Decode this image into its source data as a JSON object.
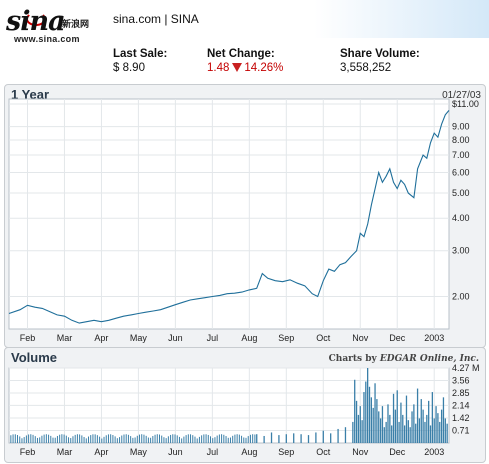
{
  "header": {
    "logo_text": "sina",
    "logo_cn": "新浪网",
    "logo_url": "www.sina.com",
    "company": "sina.com | SINA",
    "last_sale_label": "Last Sale:",
    "last_sale_value": "$ 8.90",
    "net_change_label": "Net Change:",
    "net_change_value": "1.48",
    "net_change_pct": "14.26%",
    "share_volume_label": "Share Volume:",
    "share_volume_value": "3,558,252"
  },
  "price_panel": {
    "title": "1 Year",
    "date": "01/27/03"
  },
  "volume_panel": {
    "title": "Volume",
    "credit_prefix": "Charts by ",
    "credit_brand": "EDGAR Online, Inc."
  },
  "colors": {
    "line": "#1f6f9a",
    "bar": "#3a7fa8",
    "down": "#c40000"
  },
  "chart_data": [
    {
      "type": "line",
      "title": "1 Year",
      "xlabel": "",
      "ylabel": "",
      "y_scale": "log",
      "ylim": [
        1.5,
        11.5
      ],
      "y_ticks": [
        2.0,
        3.0,
        4.0,
        5.0,
        6.0,
        7.0,
        8.0,
        9.0,
        11.0
      ],
      "y_tick_labels": [
        "2.00",
        "3.00",
        "4.00",
        "5.00",
        "6.00",
        "7.00",
        "8.00",
        "9.00",
        "$11.00"
      ],
      "x_ticks": [
        "Feb",
        "Mar",
        "Apr",
        "May",
        "Jun",
        "Jul",
        "Aug",
        "Sep",
        "Oct",
        "Nov",
        "Dec",
        "2003"
      ],
      "x_tick_pos": [
        1,
        2,
        3,
        4,
        5,
        6,
        7,
        8,
        9,
        10,
        11,
        12
      ],
      "x_range": [
        0.5,
        12.4
      ],
      "grid": true,
      "x": [
        0.5,
        0.8,
        1.0,
        1.2,
        1.4,
        1.6,
        1.8,
        2.0,
        2.2,
        2.4,
        2.6,
        2.8,
        3.0,
        3.2,
        3.4,
        3.6,
        3.8,
        4.0,
        4.2,
        4.4,
        4.6,
        4.8,
        5.0,
        5.2,
        5.4,
        5.6,
        5.8,
        6.0,
        6.2,
        6.4,
        6.6,
        6.8,
        7.0,
        7.2,
        7.35,
        7.5,
        7.7,
        7.9,
        8.1,
        8.3,
        8.5,
        8.7,
        8.85,
        9.0,
        9.15,
        9.3,
        9.45,
        9.6,
        9.75,
        9.9,
        10.0,
        10.1,
        10.2,
        10.3,
        10.4,
        10.5,
        10.6,
        10.7,
        10.8,
        10.9,
        11.0,
        11.1,
        11.2,
        11.3,
        11.45,
        11.55,
        11.7,
        11.8,
        11.9,
        12.0,
        12.1,
        12.2,
        12.3,
        12.4
      ],
      "values": [
        1.72,
        1.78,
        1.85,
        1.82,
        1.8,
        1.75,
        1.7,
        1.68,
        1.62,
        1.58,
        1.6,
        1.62,
        1.6,
        1.62,
        1.65,
        1.68,
        1.7,
        1.72,
        1.74,
        1.76,
        1.78,
        1.82,
        1.86,
        1.9,
        1.94,
        1.96,
        1.98,
        2.0,
        2.02,
        2.05,
        2.06,
        2.08,
        2.12,
        2.15,
        2.45,
        2.35,
        2.3,
        2.28,
        2.32,
        2.25,
        2.2,
        2.05,
        2.0,
        2.3,
        2.55,
        2.5,
        2.65,
        2.7,
        2.85,
        3.0,
        3.5,
        3.4,
        3.8,
        4.5,
        5.2,
        6.0,
        5.5,
        5.8,
        6.2,
        5.5,
        5.2,
        5.6,
        5.4,
        5.0,
        4.8,
        6.2,
        7.0,
        6.8,
        7.8,
        8.5,
        8.2,
        9.2,
        10.0,
        10.4
      ]
    },
    {
      "type": "bar",
      "title": "Volume",
      "xlabel": "",
      "ylabel": "",
      "unit": "M",
      "ylim": [
        0,
        4.27
      ],
      "y_ticks": [
        0.71,
        1.42,
        2.14,
        2.85,
        3.56,
        4.27
      ],
      "y_tick_labels": [
        "0.71",
        "1.42",
        "2.14",
        "2.85",
        "3.56",
        "4.27 M"
      ],
      "x_ticks": [
        "Feb",
        "Mar",
        "Apr",
        "May",
        "Jun",
        "Jul",
        "Aug",
        "Sep",
        "Oct",
        "Nov",
        "Dec",
        "2003"
      ],
      "x_tick_pos": [
        1,
        2,
        3,
        4,
        5,
        6,
        7,
        8,
        9,
        10,
        11,
        12
      ],
      "x_range": [
        0.5,
        12.4
      ],
      "grid": true,
      "x": [
        7.2,
        7.4,
        7.6,
        7.8,
        8.0,
        8.2,
        8.4,
        8.6,
        8.8,
        9.0,
        9.2,
        9.4,
        9.6,
        9.8,
        9.85,
        9.9,
        9.95,
        10.0,
        10.05,
        10.1,
        10.15,
        10.2,
        10.25,
        10.3,
        10.35,
        10.4,
        10.45,
        10.5,
        10.55,
        10.6,
        10.65,
        10.7,
        10.75,
        10.8,
        10.85,
        10.9,
        10.95,
        11.0,
        11.05,
        11.1,
        11.15,
        11.2,
        11.25,
        11.3,
        11.35,
        11.4,
        11.45,
        11.5,
        11.55,
        11.6,
        11.65,
        11.7,
        11.75,
        11.8,
        11.85,
        11.9,
        11.95,
        12.0,
        12.05,
        12.1,
        12.15,
        12.2,
        12.25,
        12.3,
        12.35
      ],
      "values": [
        0.5,
        0.4,
        0.6,
        0.45,
        0.5,
        0.55,
        0.5,
        0.45,
        0.6,
        0.7,
        0.55,
        0.8,
        0.9,
        1.2,
        3.6,
        2.4,
        1.6,
        2.1,
        1.3,
        2.9,
        3.5,
        4.27,
        3.2,
        2.6,
        2.0,
        3.4,
        2.5,
        1.8,
        1.4,
        2.1,
        0.9,
        1.2,
        2.2,
        1.6,
        1.0,
        2.8,
        1.9,
        3.0,
        1.2,
        2.3,
        1.6,
        1.0,
        2.7,
        1.3,
        0.9,
        1.8,
        2.2,
        1.1,
        3.1,
        1.4,
        2.5,
        1.9,
        1.2,
        1.6,
        2.4,
        1.0,
        2.9,
        1.4,
        2.1,
        1.7,
        1.2,
        1.9,
        2.6,
        1.4,
        1.1
      ]
    }
  ]
}
